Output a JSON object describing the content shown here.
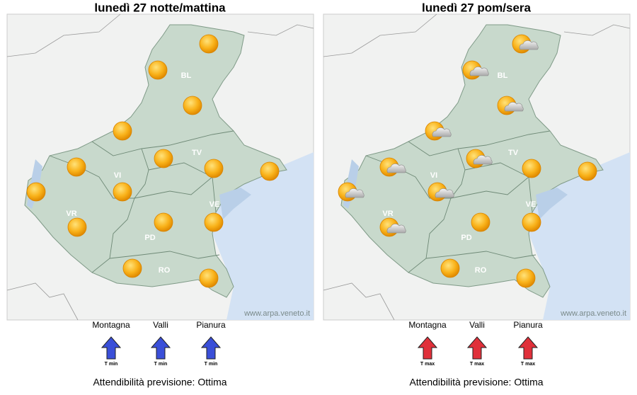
{
  "panels": [
    {
      "title": "lunedì 27 notte/mattina",
      "provinces": [
        "BL",
        "TV",
        "VI",
        "VR",
        "PD",
        "VE",
        "RO"
      ],
      "watermark": "www.arpa.veneto.it",
      "arrow_color": "#3a4fd8",
      "indicators": [
        {
          "label": "Montagna",
          "sub": "T min"
        },
        {
          "label": "Valli",
          "sub": "T min"
        },
        {
          "label": "Pianura",
          "sub": "T min"
        }
      ],
      "reliability": "Attendibilità previsione: Ottima"
    },
    {
      "title": "lunedì 27 pom/sera",
      "provinces": [
        "BL",
        "TV",
        "VI",
        "VR",
        "PD",
        "VE",
        "RO"
      ],
      "watermark": "www.arpa.veneto.it",
      "arrow_color": "#e0303a",
      "indicators": [
        {
          "label": "Montagna",
          "sub": "T max"
        },
        {
          "label": "Valli",
          "sub": "T max"
        },
        {
          "label": "Pianura",
          "sub": "T max"
        }
      ],
      "reliability": "Attendibilità previsione: Ottima"
    }
  ]
}
